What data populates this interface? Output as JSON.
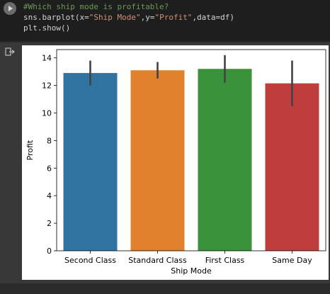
{
  "code": {
    "comment": "#Which ship mode is profitable?",
    "line2_prefix": "sns.barplot(x=",
    "line2_x": "\"Ship Mode\"",
    "line2_mid": ",y=",
    "line2_y": "\"Profit\"",
    "line2_suffix": ",data=df)",
    "line3": "plt.show()"
  },
  "icons": {
    "run": "play-icon",
    "output": "output-icon"
  },
  "chart_data": {
    "type": "bar",
    "categories": [
      "Second Class",
      "Standard Class",
      "First Class",
      "Same Day"
    ],
    "values": [
      12.9,
      13.1,
      13.2,
      12.15
    ],
    "error_low": [
      12.0,
      12.5,
      12.2,
      10.5
    ],
    "error_high": [
      13.8,
      13.7,
      14.2,
      13.8
    ],
    "colors": [
      "#3274a1",
      "#e1812c",
      "#3a923a",
      "#c03d3e"
    ],
    "xlabel": "Ship Mode",
    "ylabel": "Profit",
    "ylim": [
      0,
      14.6
    ],
    "yticks": [
      0,
      2,
      4,
      6,
      8,
      10,
      12,
      14
    ],
    "grid": false
  }
}
